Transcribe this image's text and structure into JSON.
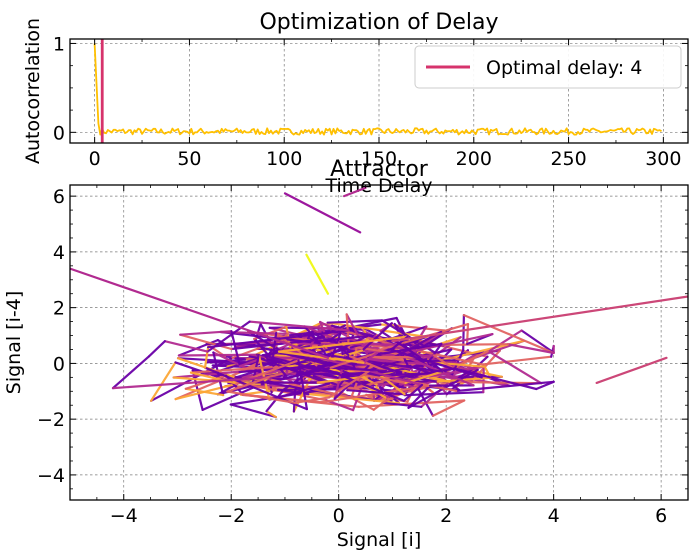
{
  "chart_data": [
    {
      "type": "line",
      "title": "Optimization of Delay",
      "xlabel": "Time Delay",
      "ylabel": "Autocorrelation",
      "xlim": [
        -13,
        313
      ],
      "ylim": [
        -0.12,
        1.05
      ],
      "xticks": [
        "0",
        "50",
        "100",
        "150",
        "200",
        "250",
        "300"
      ],
      "yticks": [
        "0",
        "1"
      ],
      "grid": true,
      "legend": {
        "position": "top-right",
        "entries": [
          "Optimal delay: 4"
        ]
      },
      "series": [
        {
          "color": "#ffc000",
          "x_range": [
            0,
            299
          ],
          "y_start": [
            1.0,
            0.55,
            0.1
          ],
          "y_approx_level": 0.01,
          "y_noise_band": [
            -0.03,
            0.05
          ]
        }
      ],
      "vlines": [
        {
          "name": "Optimal delay: 4",
          "x": 4,
          "color": "#d6336c"
        }
      ]
    },
    {
      "type": "line",
      "title": "Attractor",
      "xlabel": "Signal [i]",
      "ylabel": "Signal [i-4]",
      "xlim": [
        -5.0,
        6.5
      ],
      "ylim": [
        -4.9,
        6.4
      ],
      "xticks": [
        "−4",
        "−2",
        "0",
        "2",
        "4",
        "6"
      ],
      "yticks": [
        "−4",
        "−2",
        "0",
        "2",
        "4",
        "6"
      ],
      "grid": true,
      "colormap": "plasma",
      "colormap_stops": [
        "#6a00a8",
        "#b12a90",
        "#e16462",
        "#fca636",
        "#f0f921"
      ],
      "highlight_segments": [
        {
          "from": [
            -0.6,
            3.9
          ],
          "to": [
            -0.2,
            2.5
          ],
          "color": "#f0f921"
        },
        {
          "from": [
            0.1,
            6.0
          ],
          "to": [
            0.5,
            6.3
          ],
          "color": "#b12a90"
        },
        {
          "from": [
            -1.0,
            6.1
          ],
          "to": [
            0.4,
            4.7
          ],
          "color": "#9c179e"
        },
        {
          "from": [
            -5.0,
            3.4
          ],
          "to": [
            -0.2,
            0.2
          ],
          "color": "#b12a90"
        },
        {
          "from": [
            1.0,
            0.8
          ],
          "to": [
            6.5,
            2.4
          ],
          "color": "#cc4778"
        },
        {
          "from": [
            4.8,
            -0.7
          ],
          "to": [
            6.1,
            0.2
          ],
          "color": "#cc4778"
        }
      ]
    }
  ]
}
